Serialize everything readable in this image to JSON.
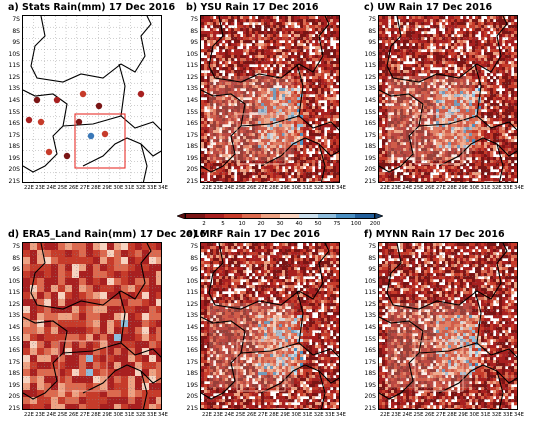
{
  "panels": [
    {
      "id": "a",
      "title": "a) Stats Rain(mm) 17 Dec 2016",
      "kind": "stations"
    },
    {
      "id": "b",
      "title": "b) YSU Rain 17 Dec 2016",
      "kind": "model"
    },
    {
      "id": "c",
      "title": "c) UW Rain 17 Dec 2016",
      "kind": "model"
    },
    {
      "id": "d",
      "title": "d) ERA5_Land Rain(mm) 17 Dec 2016",
      "kind": "reanalysis"
    },
    {
      "id": "e",
      "title": "e) MRF Rain 17 Dec 2016",
      "kind": "model"
    },
    {
      "id": "f",
      "title": "f) MYNN Rain 17 Dec 2016",
      "kind": "model"
    }
  ],
  "lat_labels": [
    "7S",
    "8S",
    "9S",
    "10S",
    "11S",
    "12S",
    "13S",
    "14S",
    "15S",
    "16S",
    "17S",
    "18S",
    "19S",
    "20S",
    "21S"
  ],
  "lon_labels": [
    "22E",
    "23E",
    "24E",
    "25E",
    "26E",
    "27E",
    "28E",
    "29E",
    "30E",
    "31E",
    "32E",
    "33E",
    "34E"
  ],
  "colorbar": {
    "levels": [
      "2",
      "5",
      "10",
      "20",
      "30",
      "40",
      "50",
      "75",
      "100",
      "200"
    ],
    "colors": [
      "#7a1515",
      "#a82020",
      "#c63b2a",
      "#dc6a4f",
      "#eda283",
      "#f7d3c0",
      "#ccdfec",
      "#8fbddc",
      "#4a8fc2",
      "#225f9b"
    ]
  }
}
